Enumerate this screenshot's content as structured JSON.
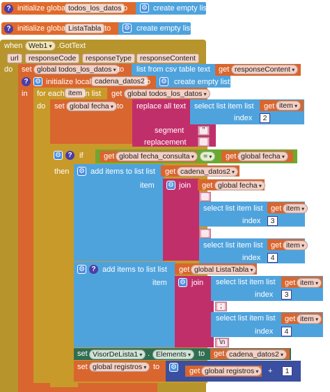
{
  "blocks": {
    "init1": {
      "keyword": "initialize global",
      "name": "todos_los_datos",
      "to": "to",
      "value": "create empty list"
    },
    "init2": {
      "keyword": "initialize global",
      "name": "ListaTabla",
      "to": "to",
      "value": "create empty list"
    },
    "event": {
      "when": "when",
      "component": "Web1",
      "event": ".GotText",
      "params": [
        "url",
        "responseCode",
        "responseType",
        "responseContent"
      ],
      "do": "do"
    },
    "set_todos": {
      "set": "set",
      "var": "global todos_los_datos",
      "to": "to",
      "fn": "list from csv table  text",
      "get": "get",
      "arg": "responseContent"
    },
    "local": {
      "keyword": "initialize local",
      "name": "cadena_datos2",
      "to": "to",
      "value": "create empty list",
      "in": "in"
    },
    "foreach": {
      "keyword": "for each",
      "item": "item",
      "in_list": "in list",
      "get": "get",
      "list": "global todos_los_datos",
      "do": "do"
    },
    "set_fecha": {
      "set": "set",
      "var": "global fecha",
      "to": "to",
      "fn": "replace all text",
      "select": "select list item  list",
      "get": "get",
      "item": "item",
      "index_label": "index",
      "index": "2",
      "segment_label": "segment",
      "segment": "\"",
      "replacement_label": "replacement",
      "replacement": ""
    },
    "if_block": {
      "if": "if",
      "get": "get",
      "left": "global fecha_consulta",
      "op": "=",
      "right": "global fecha",
      "then": "then"
    },
    "add1": {
      "label": "add items to list  list",
      "get": "get",
      "list": "cadena_datos2",
      "item_label": "item",
      "join": "join",
      "v1": "global fecha",
      "s1": "",
      "select": "select list item  list",
      "item_var": "item",
      "index_label": "index",
      "idx1": "3",
      "s2": "",
      "idx2": "4"
    },
    "add2": {
      "label": "add items to list  list",
      "get": "get",
      "list": "global ListaTabla",
      "item_label": "item",
      "join": "join",
      "select": "select list item  list",
      "item_var": "item",
      "index_label": "index",
      "idx1": "3",
      "sep": ";",
      "idx2": "4",
      "newline": "\\n"
    },
    "set_visor": {
      "set": "set",
      "component": "VisorDeLista1",
      "prop": "Elements",
      "to": "to",
      "get": "get",
      "value": "cadena_datos2"
    },
    "set_registros": {
      "set": "set",
      "var": "global registros",
      "to": "to",
      "get": "get",
      "arg": "global registros",
      "op": "+",
      "num": "1"
    }
  },
  "colors": {
    "variable": "#d9662e",
    "list": "#4fa3dd",
    "control": "#c89a2a",
    "event": "#b8962a",
    "text": "#c12f6b",
    "logic": "#6aaa2e",
    "component": "#2f6e52",
    "math": "#3a4fa0"
  },
  "icons": {
    "help": "question-icon",
    "gear": "gear-icon"
  }
}
